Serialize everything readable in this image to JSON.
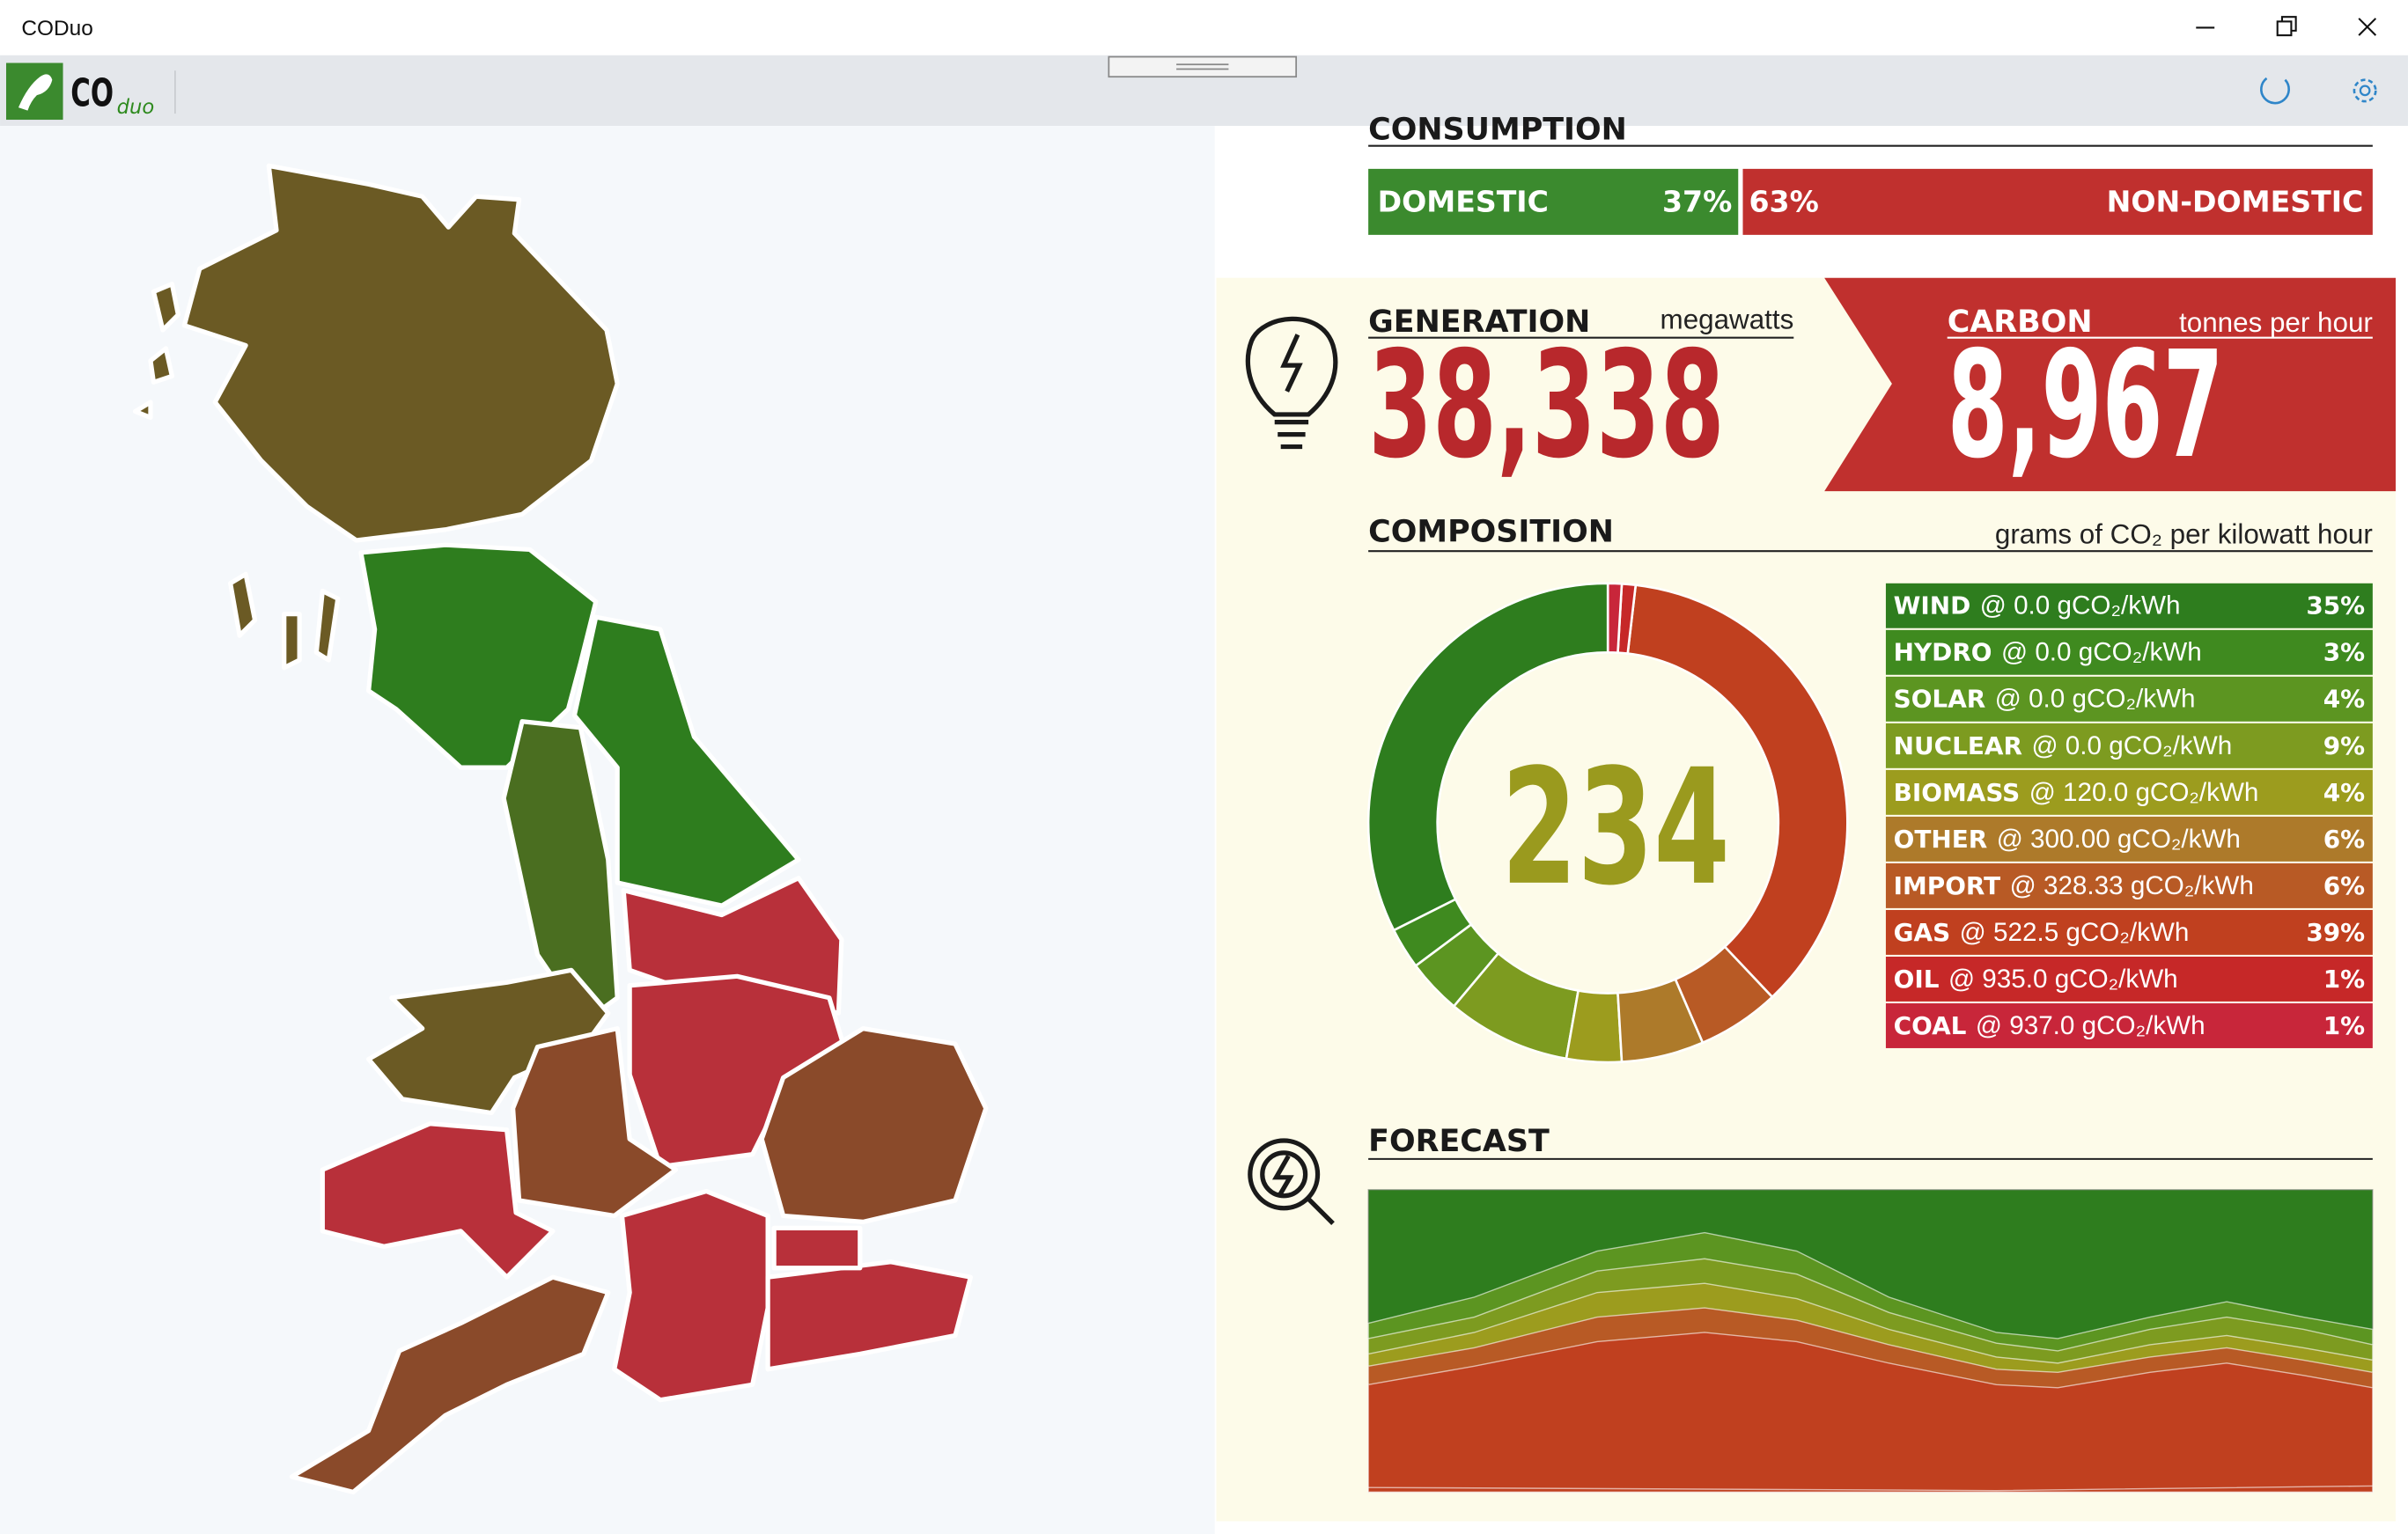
{
  "window": {
    "title": "CODuo"
  },
  "toolbar": {
    "logo_text": "CO",
    "logo_subtext": "duo"
  },
  "consumption": {
    "title": "CONSUMPTION",
    "domestic": {
      "label": "DOMESTIC",
      "percent": 37,
      "percent_label": "37%",
      "color": "#3b8a2e"
    },
    "non_domestic": {
      "label": "NON-DOMESTIC",
      "percent": 63,
      "percent_label": "63%",
      "color": "#c0302e"
    }
  },
  "generation": {
    "title": "GENERATION",
    "unit": "megawatts",
    "value": "38,338"
  },
  "carbon": {
    "title": "CARBON",
    "unit": "tonnes per hour",
    "value": "8,967"
  },
  "composition": {
    "title": "COMPOSITION",
    "unit": "grams of CO₂ per kilowatt hour",
    "intensity": "234",
    "sources": [
      {
        "name": "WIND",
        "rate": "@ 0.0 gCO₂/kWh",
        "percent": 35,
        "percent_label": "35%",
        "color": "#2e7d1e"
      },
      {
        "name": "HYDRO",
        "rate": "@ 0.0 gCO₂/kWh",
        "percent": 3,
        "percent_label": "3%",
        "color": "#3f8a1f"
      },
      {
        "name": "SOLAR",
        "rate": "@ 0.0 gCO₂/kWh",
        "percent": 4,
        "percent_label": "4%",
        "color": "#5c9521"
      },
      {
        "name": "NUCLEAR",
        "rate": "@ 0.0 gCO₂/kWh",
        "percent": 9,
        "percent_label": "9%",
        "color": "#7d9b20"
      },
      {
        "name": "BIOMASS",
        "rate": "@ 120.0 gCO₂/kWh",
        "percent": 4,
        "percent_label": "4%",
        "color": "#9c9c1e"
      },
      {
        "name": "OTHER",
        "rate": "@ 300.00 gCO₂/kWh",
        "percent": 6,
        "percent_label": "6%",
        "color": "#ad7a2a"
      },
      {
        "name": "IMPORT",
        "rate": "@ 328.33 gCO₂/kWh",
        "percent": 6,
        "percent_label": "6%",
        "color": "#b85a25"
      },
      {
        "name": "GAS",
        "rate": "@ 522.5 gCO₂/kWh",
        "percent": 39,
        "percent_label": "39%",
        "color": "#c0401f"
      },
      {
        "name": "OIL",
        "rate": "@ 935.0 gCO₂/kWh",
        "percent": 1,
        "percent_label": "1%",
        "color": "#c62828"
      },
      {
        "name": "COAL",
        "rate": "@ 937.0 gCO₂/kWh",
        "percent": 1,
        "percent_label": "1%",
        "color": "#c8263a"
      }
    ]
  },
  "forecast": {
    "title": "FORECAST"
  }
}
